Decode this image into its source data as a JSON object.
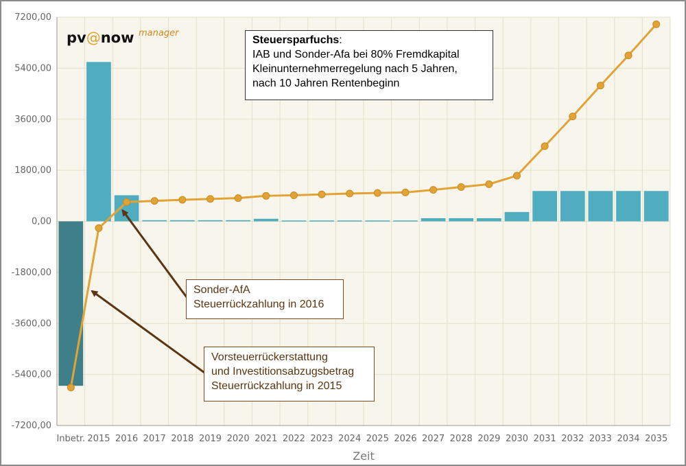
{
  "logo": {
    "pv": "pv",
    "at": "@",
    "now": "now",
    "manager": "manager"
  },
  "info_box": {
    "title": "Steuersparfuchs",
    "title_suffix": ":",
    "lines": [
      "IAB und Sonder-Afa bei 80% Fremdkapital",
      "Kleinunternehmerregelung nach 5 Jahren,",
      "nach 10 Jahren Rentenbeginn"
    ]
  },
  "annotations": [
    {
      "lines": [
        "Sonder-AfA",
        "Steuerrückzahlung in 2016"
      ],
      "points_to": "2016"
    },
    {
      "lines": [
        "Vorsteuerrückerstattung",
        "und Investitionsabzugsbetrag",
        "Steuerrückzahlung in 2015"
      ],
      "points_to": "2015"
    }
  ],
  "colors": {
    "plot_bg": "#f8f6ec",
    "grid": "#e4dfc9",
    "bar": "#4fadbf",
    "bar_negative": "#3f7f8a",
    "line": "#e1a236",
    "arrow": "#5b3412"
  },
  "chart_data": {
    "type": "bar",
    "xlabel": "Zeit",
    "ylabel": "",
    "ylim": [
      -7200,
      7200
    ],
    "yticks": [
      "7200,00",
      "5400,00",
      "3600,00",
      "1800,00",
      "0,00",
      "-1800,00",
      "-3600,00",
      "-5400,00",
      "-7200,00"
    ],
    "grid": true,
    "categories": [
      "Inbetr.",
      "2015",
      "2016",
      "2017",
      "2018",
      "2019",
      "2020",
      "2021",
      "2022",
      "2023",
      "2024",
      "2025",
      "2026",
      "2027",
      "2028",
      "2029",
      "2030",
      "2031",
      "2032",
      "2033",
      "2034",
      "2035"
    ],
    "series": [
      {
        "type": "bar",
        "values": [
          -5800,
          5620,
          920,
          40,
          40,
          40,
          40,
          90,
          30,
          30,
          30,
          30,
          30,
          110,
          110,
          110,
          330,
          1070,
          1070,
          1070,
          1070,
          1070
        ]
      },
      {
        "type": "line",
        "values": [
          -5860,
          -240,
          680,
          720,
          760,
          790,
          820,
          900,
          920,
          950,
          980,
          1000,
          1020,
          1110,
          1210,
          1310,
          1610,
          2650,
          3700,
          4790,
          5850,
          6950
        ]
      }
    ]
  }
}
